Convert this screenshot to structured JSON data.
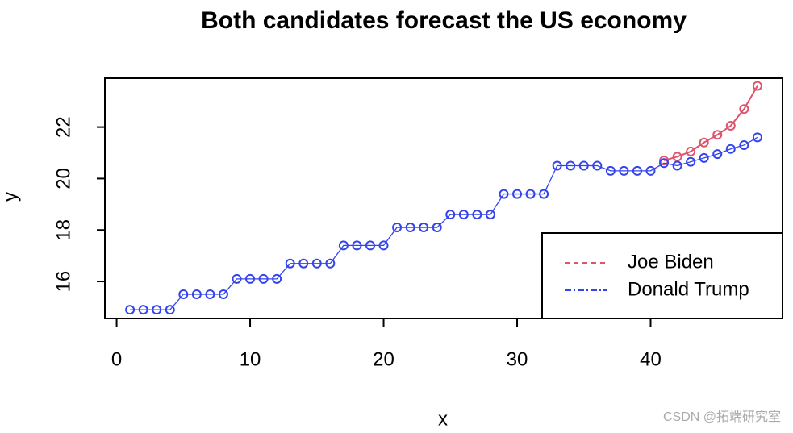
{
  "chart_data": {
    "type": "line",
    "title": "Both candidates forecast the US economy",
    "x_label": "x",
    "y_label": "y",
    "x": [
      1,
      2,
      3,
      4,
      5,
      6,
      7,
      8,
      9,
      10,
      11,
      12,
      13,
      14,
      15,
      16,
      17,
      18,
      19,
      20,
      21,
      22,
      23,
      24,
      25,
      26,
      27,
      28,
      29,
      30,
      31,
      32,
      33,
      34,
      35,
      36,
      37,
      38,
      39,
      40,
      41,
      42,
      43,
      44,
      45,
      46,
      47,
      48
    ],
    "series": [
      {
        "name": "Joe Biden",
        "color": "#df536b",
        "dash": "6,5",
        "values": [
          null,
          null,
          null,
          null,
          null,
          null,
          null,
          null,
          null,
          null,
          null,
          null,
          null,
          null,
          null,
          null,
          null,
          null,
          null,
          null,
          null,
          null,
          null,
          null,
          null,
          null,
          null,
          null,
          null,
          null,
          null,
          null,
          null,
          null,
          null,
          null,
          null,
          null,
          null,
          null,
          20.7,
          20.85,
          21.05,
          21.4,
          21.7,
          22.05,
          22.7,
          23.6
        ]
      },
      {
        "name": "Donald Trump",
        "color": "#3344ee",
        "dash": "8,3,2,3",
        "values": [
          14.9,
          14.9,
          14.9,
          14.9,
          15.5,
          15.5,
          15.5,
          15.5,
          16.1,
          16.1,
          16.1,
          16.1,
          16.7,
          16.7,
          16.7,
          16.7,
          17.4,
          17.4,
          17.4,
          17.4,
          18.1,
          18.1,
          18.1,
          18.1,
          18.6,
          18.6,
          18.6,
          18.6,
          19.4,
          19.4,
          19.4,
          19.4,
          20.5,
          20.5,
          20.5,
          20.5,
          20.3,
          20.3,
          20.3,
          20.3,
          20.6,
          20.5,
          20.65,
          20.8,
          20.95,
          21.15,
          21.3,
          21.6
        ]
      }
    ],
    "xlim": [
      -0.88,
      49.88
    ],
    "xticks": [
      0,
      10,
      20,
      30,
      40
    ],
    "ylim": [
      14.56,
      23.9
    ],
    "yticks": [
      16,
      18,
      20,
      22
    ],
    "legend": "bottomright",
    "watermark": "CSDN @拓端研究室"
  }
}
